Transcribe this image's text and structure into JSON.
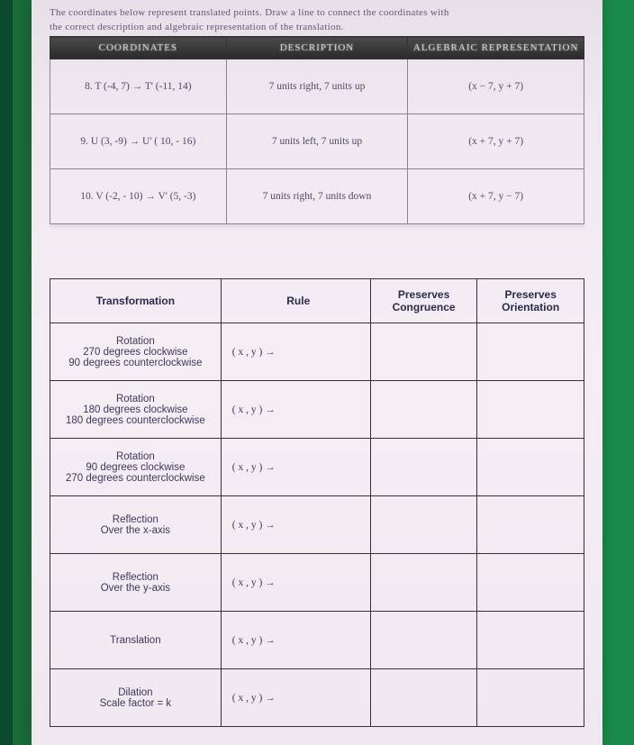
{
  "instructions": {
    "line1": "The coordinates below represent translated points. Draw a line to connect the coordinates with",
    "line2": "the correct description and algebraic representation of the translation."
  },
  "table1": {
    "headers": {
      "c1": "COORDINATES",
      "c2": "DESCRIPTION",
      "c3": "ALGEBRAIC REPRESENTATION"
    },
    "rows": [
      {
        "coord": "8. T (-4, 7) → T' (-11, 14)",
        "desc": "7 units right, 7 units up",
        "alg": "(x − 7, y + 7)"
      },
      {
        "coord": "9. U (3, -9) → U' ( 10, - 16)",
        "desc": "7 units left, 7 units up",
        "alg": "(x + 7, y + 7)"
      },
      {
        "coord": "10. V (-2, - 10) → V' (5, -3)",
        "desc": "7 units right, 7 units down",
        "alg": "(x + 7, y − 7)"
      }
    ]
  },
  "table2": {
    "headers": {
      "c1": "Transformation",
      "c2": "Rule",
      "c3": "Preserves Congruence",
      "c4": "Preserves Orientation"
    },
    "rule_template": "( x , y ) →",
    "rows": [
      {
        "name": "Rotation\n270 degrees clockwise\n90 degrees counterclockwise"
      },
      {
        "name": "Rotation\n180 degrees clockwise\n180 degrees counterclockwise"
      },
      {
        "name": "Rotation\n90 degrees clockwise\n270 degrees counterclockwise"
      },
      {
        "name": "Reflection\nOver the x-axis"
      },
      {
        "name": "Reflection\nOver the y-axis"
      },
      {
        "name": "Translation"
      },
      {
        "name": "Dilation\nScale factor = k"
      }
    ]
  },
  "colors": {
    "page_bg": "#f0e8f0",
    "border": "#333333",
    "text": "#4a4a6a",
    "header_bg": "#2a2a2a"
  }
}
